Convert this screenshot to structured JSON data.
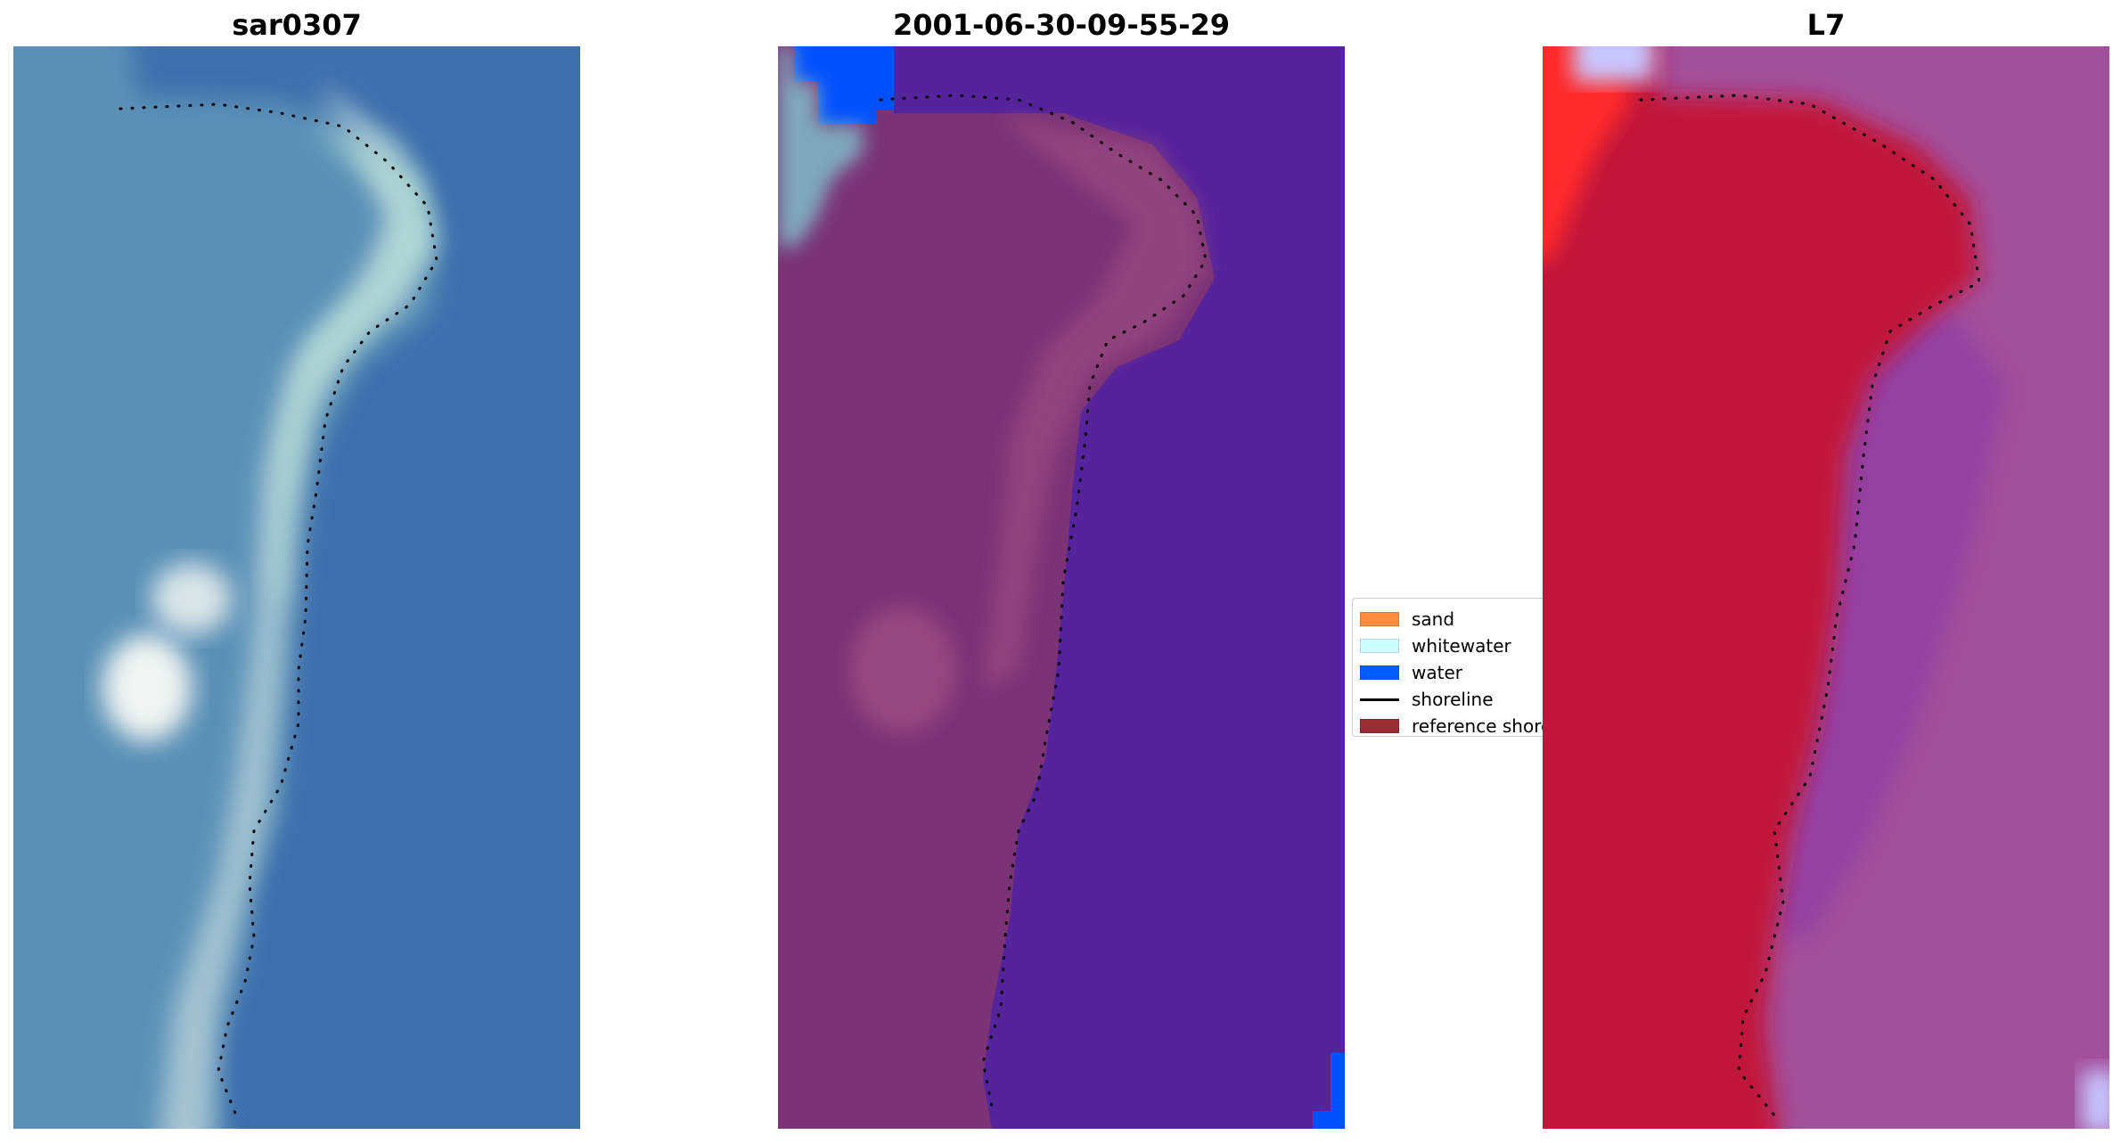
{
  "chart_data": [
    {
      "type": "image",
      "title": "sar0307",
      "axis": "off",
      "series": [
        {
          "name": "reference shoreline",
          "style": "dotted",
          "color": "#000000"
        }
      ],
      "background": {
        "land_color": "#5a90b6",
        "sand_color": "#a6c4d2",
        "water_color": "#3e6eac",
        "shoreline_color": "#b5ded6",
        "highlight_color": "#f1f4f2"
      }
    },
    {
      "type": "image",
      "title": "2001-06-30-09-55-29",
      "axis": "off",
      "legend_position": "right",
      "series": [
        {
          "name": "reference shoreline",
          "style": "dotted",
          "color": "#000000"
        }
      ],
      "background": {
        "land_color": "#7b3375",
        "sand_color": "#9a487f",
        "water_color": "#55239b",
        "water_class_color": "#0050ff",
        "corner_color": "#7fa7bd"
      }
    },
    {
      "type": "image",
      "title": "L7",
      "axis": "off",
      "series": [
        {
          "name": "reference shoreline",
          "style": "dotted",
          "color": "#000000"
        }
      ],
      "background": {
        "land_color": "#c1133a",
        "water_color": "#a3509a",
        "shallow_color": "#8a38a8",
        "corner_red": "#ff2a2a",
        "corner_light": "#c7c7ff"
      }
    }
  ],
  "legend": {
    "items": [
      {
        "label": "sand",
        "color": "#ff8c3f",
        "kind": "patch"
      },
      {
        "label": "whitewater",
        "color": "#ccffff",
        "kind": "patch"
      },
      {
        "label": "water",
        "color": "#005cfe",
        "kind": "patch"
      },
      {
        "label": "shoreline",
        "color": "#000000",
        "kind": "line"
      },
      {
        "label": "reference shoreline",
        "color": "#9b2d35",
        "kind": "patch"
      }
    ]
  }
}
